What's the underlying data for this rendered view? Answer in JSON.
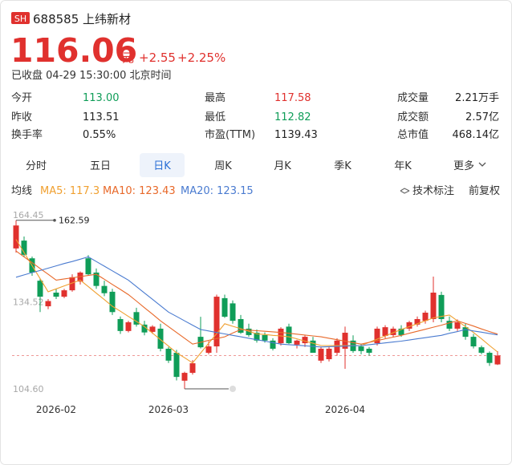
{
  "header": {
    "badge": "SH",
    "name": "688585 上纬新材",
    "price": "116.06",
    "unit": "元",
    "change": "+2.55",
    "change_pct": "+2.25%",
    "status": "已收盘 04-29 15:30:00 北京时间"
  },
  "stats": [
    {
      "label": "今开",
      "value": "113.00",
      "color": "#0f9d58"
    },
    {
      "label": "最高",
      "value": "117.58",
      "color": "#e0312e"
    },
    {
      "label": "成交量",
      "value": "2.21万手",
      "color": "#222222"
    },
    {
      "label": "昨收",
      "value": "113.51",
      "color": "#222222"
    },
    {
      "label": "最低",
      "value": "112.82",
      "color": "#0f9d58"
    },
    {
      "label": "成交额",
      "value": "2.57亿",
      "color": "#222222"
    },
    {
      "label": "换手率",
      "value": "0.55%",
      "color": "#222222"
    },
    {
      "label": "市盈(TTM)",
      "value": "1139.43",
      "color": "#222222"
    },
    {
      "label": "总市值",
      "value": "468.14亿",
      "color": "#222222"
    }
  ],
  "tabs": {
    "items": [
      "分时",
      "五日",
      "日K",
      "周K",
      "月K",
      "季K",
      "年K",
      "更多"
    ],
    "selected": 2
  },
  "ma_bar": {
    "title": "均线",
    "tools": [
      "技术标注",
      "前复权"
    ]
  },
  "chart_data": {
    "type": "candlestick",
    "categories": [
      null,
      null,
      null,
      null,
      null,
      "2026-02",
      null,
      null,
      null,
      null,
      null,
      null,
      null,
      null,
      null,
      null,
      null,
      null,
      null,
      "2026-03",
      null,
      null,
      null,
      null,
      null,
      null,
      null,
      null,
      null,
      null,
      null,
      null,
      null,
      null,
      null,
      null,
      null,
      null,
      null,
      null,
      null,
      "2026-04",
      null,
      null,
      null,
      null,
      null,
      null,
      null,
      null,
      null,
      null,
      null,
      null,
      null,
      null,
      null,
      null,
      null,
      null,
      null
    ],
    "open": [
      152.9,
      155.6,
      149.5,
      141.8,
      133.0,
      137.7,
      136.3,
      138.5,
      141.5,
      149.5,
      144.6,
      140.0,
      138.0,
      128.6,
      124.5,
      131.0,
      126.7,
      124.2,
      125.3,
      118.4,
      117.0,
      107.4,
      110.1,
      122.5,
      117.0,
      119.2,
      135.8,
      134.0,
      128.6,
      125.3,
      123.9,
      123.1,
      121.2,
      120.3,
      126.0,
      119.8,
      120.3,
      121.2,
      114.3,
      114.8,
      117.0,
      118.4,
      121.2,
      119.2,
      118.4,
      120.3,
      122.8,
      123.1,
      125.3,
      125.3,
      126.7,
      128.0,
      128.6,
      136.9,
      128.0,
      125.3,
      125.8,
      122.5,
      118.9,
      117.0,
      113.0
    ],
    "high": [
      162.59,
      157,
      150.1,
      142.5,
      135.5,
      139,
      139,
      144,
      145,
      150.6,
      146,
      141.8,
      139,
      129.5,
      128,
      132.5,
      128,
      126.5,
      127,
      119,
      118,
      110.5,
      114.5,
      129.4,
      121,
      137,
      137,
      135,
      130,
      127,
      125,
      124,
      122,
      125.8,
      127,
      121.5,
      123,
      122.5,
      119,
      119,
      122,
      126,
      123,
      120,
      119,
      126,
      126.5,
      126,
      126.5,
      128,
      129.5,
      131.5,
      143.2,
      138,
      129.5,
      128.5,
      127,
      123.5,
      119.5,
      117.5,
      117.58
    ],
    "low": [
      151.5,
      150,
      143.5,
      131,
      132,
      135.5,
      135.8,
      138,
      140.5,
      143.5,
      139,
      136.5,
      130,
      123.5,
      124,
      126,
      123,
      123.5,
      117.5,
      113.5,
      107.5,
      104.6,
      109.5,
      118.5,
      116.5,
      117,
      129,
      127,
      123.5,
      122.5,
      120.5,
      120.5,
      117.8,
      119.5,
      120,
      118.5,
      119,
      117,
      113.5,
      114,
      116,
      111.5,
      117,
      116.5,
      116,
      119.5,
      122,
      122.5,
      122.5,
      124.5,
      126,
      127,
      127.5,
      127.5,
      124.5,
      124.5,
      121.5,
      118.5,
      116.5,
      112.5,
      112.82
    ],
    "close": [
      160.8,
      150.7,
      144.6,
      136.3,
      134.8,
      136.3,
      138.5,
      143.0,
      144.6,
      144.0,
      140.0,
      137.5,
      131.0,
      124.5,
      127.5,
      126.7,
      124.0,
      126.0,
      118.4,
      114.3,
      108.7,
      110.1,
      113.4,
      118.9,
      119.2,
      136.3,
      129.4,
      128.0,
      123.9,
      123.1,
      121.2,
      121.2,
      118.4,
      125.3,
      120.3,
      121.2,
      122.5,
      117.0,
      118.4,
      118.4,
      121.2,
      123.9,
      117.6,
      117.6,
      117.0,
      125.3,
      125.8,
      125.3,
      123.1,
      127.5,
      128.6,
      130.8,
      137.7,
      128.6,
      125.3,
      127.5,
      122.5,
      119.2,
      117.0,
      113.51,
      116.06
    ],
    "up_color": "#e0312e",
    "down_color": "#0f9d58",
    "series": [
      {
        "name": "MA5",
        "label": "MA5: 117.3",
        "color": "#f0a030",
        "values": [
          156,
          151.5,
          147,
          142.5,
          138,
          139,
          140,
          141,
          142,
          139.8,
          137.5,
          135.3,
          133,
          131.3,
          129.5,
          127.8,
          126,
          123.8,
          121.5,
          119.3,
          117,
          115.3,
          113.5,
          116.9,
          120.3,
          123.6,
          127,
          126.1,
          125.3,
          124.4,
          123.5,
          123.3,
          123,
          122.8,
          122.5,
          121.8,
          121,
          120.3,
          119.5,
          119.5,
          119.5,
          119.5,
          119.5,
          119.5,
          120.6,
          121.7,
          122.8,
          123.9,
          125,
          126,
          127,
          128,
          129,
          129.5,
          130,
          128,
          126,
          124,
          121.8,
          119.5,
          117.3
        ]
      },
      {
        "name": "MA10",
        "label": "MA10: 123.43",
        "color": "#e8692a",
        "values": [
          152,
          150,
          148,
          146,
          144,
          142,
          142.4,
          142.8,
          143.2,
          143.6,
          144,
          142.3,
          140.5,
          138.8,
          137,
          134.8,
          132.5,
          130.3,
          128,
          126,
          124,
          122,
          120,
          120.6,
          121.3,
          121.9,
          122.5,
          123.8,
          125,
          124.8,
          124.6,
          124.4,
          124.2,
          124,
          123.7,
          123.4,
          123.1,
          122.8,
          122.5,
          122,
          121.5,
          121,
          120.5,
          120,
          120.6,
          121.2,
          121.8,
          122.4,
          123,
          123.7,
          124.4,
          125.1,
          125.8,
          126.5,
          127.3,
          128,
          127.1,
          126.2,
          125.2,
          124.3,
          123.43
        ]
      },
      {
        "name": "MA20",
        "label": "MA20: 123.15",
        "color": "#4a7bd0",
        "values": [
          143,
          143.8,
          144.6,
          145.3,
          146.1,
          146.9,
          147.7,
          148.4,
          149.2,
          150,
          148.4,
          146.8,
          145.2,
          143.6,
          142,
          139.8,
          137.6,
          135.4,
          133.2,
          131,
          129.5,
          128,
          126.5,
          125,
          124.5,
          124,
          123.5,
          123,
          122.5,
          122,
          121.5,
          121,
          120.5,
          120,
          119.8,
          119.6,
          119.4,
          119.2,
          119,
          119.1,
          119.2,
          119.3,
          119.4,
          119.5,
          119.8,
          120.1,
          120.4,
          120.7,
          121,
          121.4,
          121.8,
          122.2,
          122.6,
          123,
          123.7,
          124.3,
          125,
          124.5,
          124.1,
          123.6,
          123.15
        ]
      }
    ],
    "ylim": [
      104.6,
      164.45
    ],
    "yticks": [
      {
        "value": 104.6,
        "label": "104.60"
      },
      134.52,
      164.45
    ]
  }
}
